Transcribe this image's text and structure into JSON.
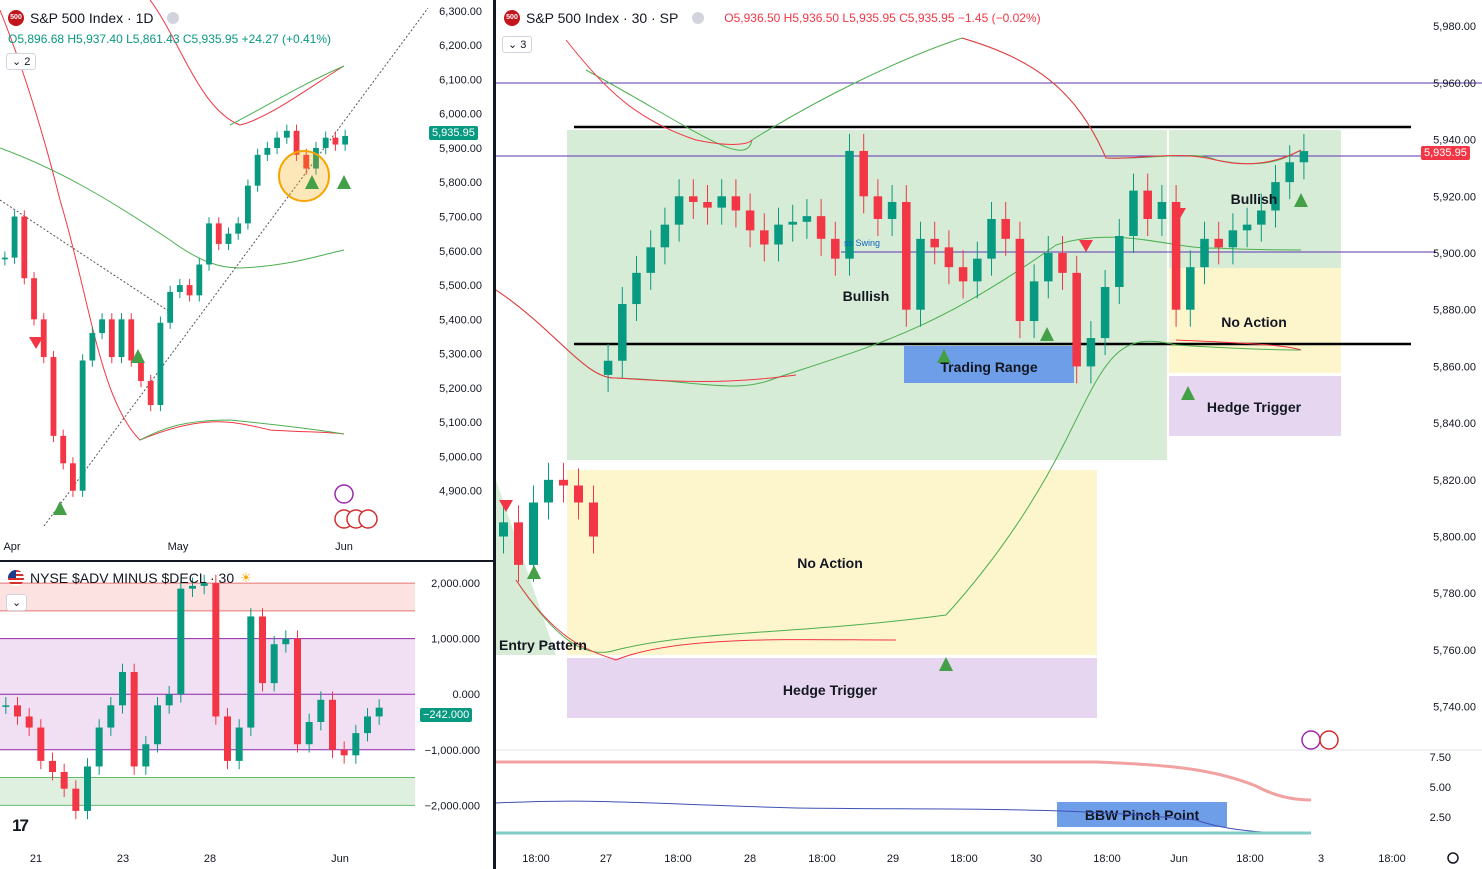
{
  "daily": {
    "title": "S&P 500 Index · 1D",
    "logo_text": "500",
    "legend_count": "2",
    "ohlc": {
      "o": "O5,896.68",
      "h": "H5,937.40",
      "l": "L5,861.43",
      "c": "C5,935.95",
      "chg": "+24.27 (+0.41%)"
    },
    "last_price": "5,935.95",
    "colors": {
      "up": "#089981",
      "down": "#f23645",
      "band_upper": "#4caf50",
      "band_lower": "#f23645",
      "marker_highlight": "#f7a600"
    }
  },
  "breadth": {
    "title": "NYSE $ADV MINUS $DECL · 30",
    "last_value": "−242.000",
    "tv_logo": "17"
  },
  "main": {
    "title": "S&P 500 Index · 30 · SP",
    "logo_text": "500",
    "legend_count": "3",
    "ohlc": {
      "o": "O5,936.50",
      "h": "H5,936.50",
      "l": "L5,935.95",
      "c": "C5,935.95",
      "chg": "−1.45 (−0.02%)"
    },
    "last_price": "5,935.95",
    "zones": {
      "bullish_main": "Bullish",
      "bullish_right": "Bullish",
      "trading_range": "Trading Range",
      "no_action_left": "No Action",
      "no_action_right": "No Action",
      "hedge_trigger_left": "Hedge Trigger",
      "hedge_trigger_right": "Hedge Trigger",
      "entry_pattern": "Entry Pattern",
      "bbw_pinch": "BBW Pinch Point",
      "ss_swing": "ss Swing"
    },
    "colors": {
      "bull_zone": "#d6ecd6",
      "no_action_zone": "#fdf5cc",
      "hedge_zone": "#e6d6ef",
      "range_box": "#6f9ee8",
      "bbw_box": "#6f9ee8"
    }
  },
  "chart_data": [
    {
      "type": "line",
      "title": "S&P 500 Index · 1D",
      "yaxis_ticks": [
        "6,300.00",
        "6,200.00",
        "6,100.00",
        "6,000.00",
        "5,900.00",
        "5,800.00",
        "5,700.00",
        "5,600.00",
        "5,500.00",
        "5,400.00",
        "5,300.00",
        "5,200.00",
        "5,100.00",
        "5,000.00",
        "4,900.00"
      ],
      "xaxis_ticks": [
        "Apr",
        "May",
        "Jun"
      ],
      "ylim": [
        4800,
        6320
      ],
      "series": [
        {
          "values": [
            5580,
            5700,
            5520,
            5400,
            5290,
            5060,
            4980,
            4900,
            5280,
            5360,
            5400,
            5290,
            5400,
            5280,
            5220,
            5150,
            5390,
            5480,
            5500,
            5470,
            5560,
            5680,
            5620,
            5650,
            5680,
            5790,
            5880,
            5900,
            5930,
            5950,
            5880,
            5840,
            5900,
            5930,
            5910,
            5935
          ]
        }
      ]
    },
    {
      "type": "line",
      "title": "NYSE $ADV MINUS $DECL · 30",
      "yaxis_ticks": [
        "2,000.000",
        "1,000.000",
        "0.000",
        "−1,000.000",
        "−2,000.000"
      ],
      "xaxis_ticks": [
        "21",
        "23",
        "28",
        "Jun"
      ],
      "ylim": [
        -2300,
        2200
      ],
      "series": [
        {
          "values": [
            -200,
            -400,
            -600,
            -1200,
            -1400,
            -1700,
            -2100,
            -1300,
            -600,
            -200,
            400,
            -1300,
            -900,
            -200,
            0,
            1900,
            1950,
            2000,
            -400,
            -1200,
            -600,
            1400,
            200,
            900,
            1000,
            -900,
            -500,
            -100,
            -1000,
            -1100,
            -700,
            -400,
            -242
          ]
        }
      ]
    },
    {
      "type": "line",
      "title": "S&P 500 Index · 30 · SP",
      "yaxis_ticks": [
        "5,980.00",
        "5,960.00",
        "5,940.00",
        "5,920.00",
        "5,900.00",
        "5,880.00",
        "5,860.00",
        "5,840.00",
        "5,820.00",
        "5,800.00",
        "5,780.00",
        "5,760.00",
        "5,740.00"
      ],
      "bbw_ticks": [
        "7.50",
        "5.00",
        "2.50"
      ],
      "xaxis_ticks": [
        "18:00",
        "27",
        "18:00",
        "28",
        "18:00",
        "29",
        "18:00",
        "30",
        "18:00",
        "Jun",
        "18:00",
        "3",
        "18:00"
      ],
      "ylim": [
        5730,
        5985
      ],
      "series": [
        {
          "values": [
            5805,
            5790,
            5812,
            5820,
            5818,
            5812,
            5800,
            5862,
            5882,
            5893,
            5902,
            5910,
            5920,
            5918,
            5916,
            5920,
            5915,
            5908,
            5903,
            5910,
            5911,
            5913,
            5905,
            5898,
            5936,
            5920,
            5912,
            5918,
            5880,
            5905,
            5902,
            5895,
            5890,
            5898,
            5912,
            5905,
            5876,
            5890,
            5900,
            5893,
            5860,
            5870,
            5888,
            5906,
            5922,
            5912,
            5918,
            5880,
            5895,
            5905,
            5902,
            5908,
            5910,
            5915,
            5925,
            5932,
            5935.95
          ]
        }
      ]
    }
  ]
}
